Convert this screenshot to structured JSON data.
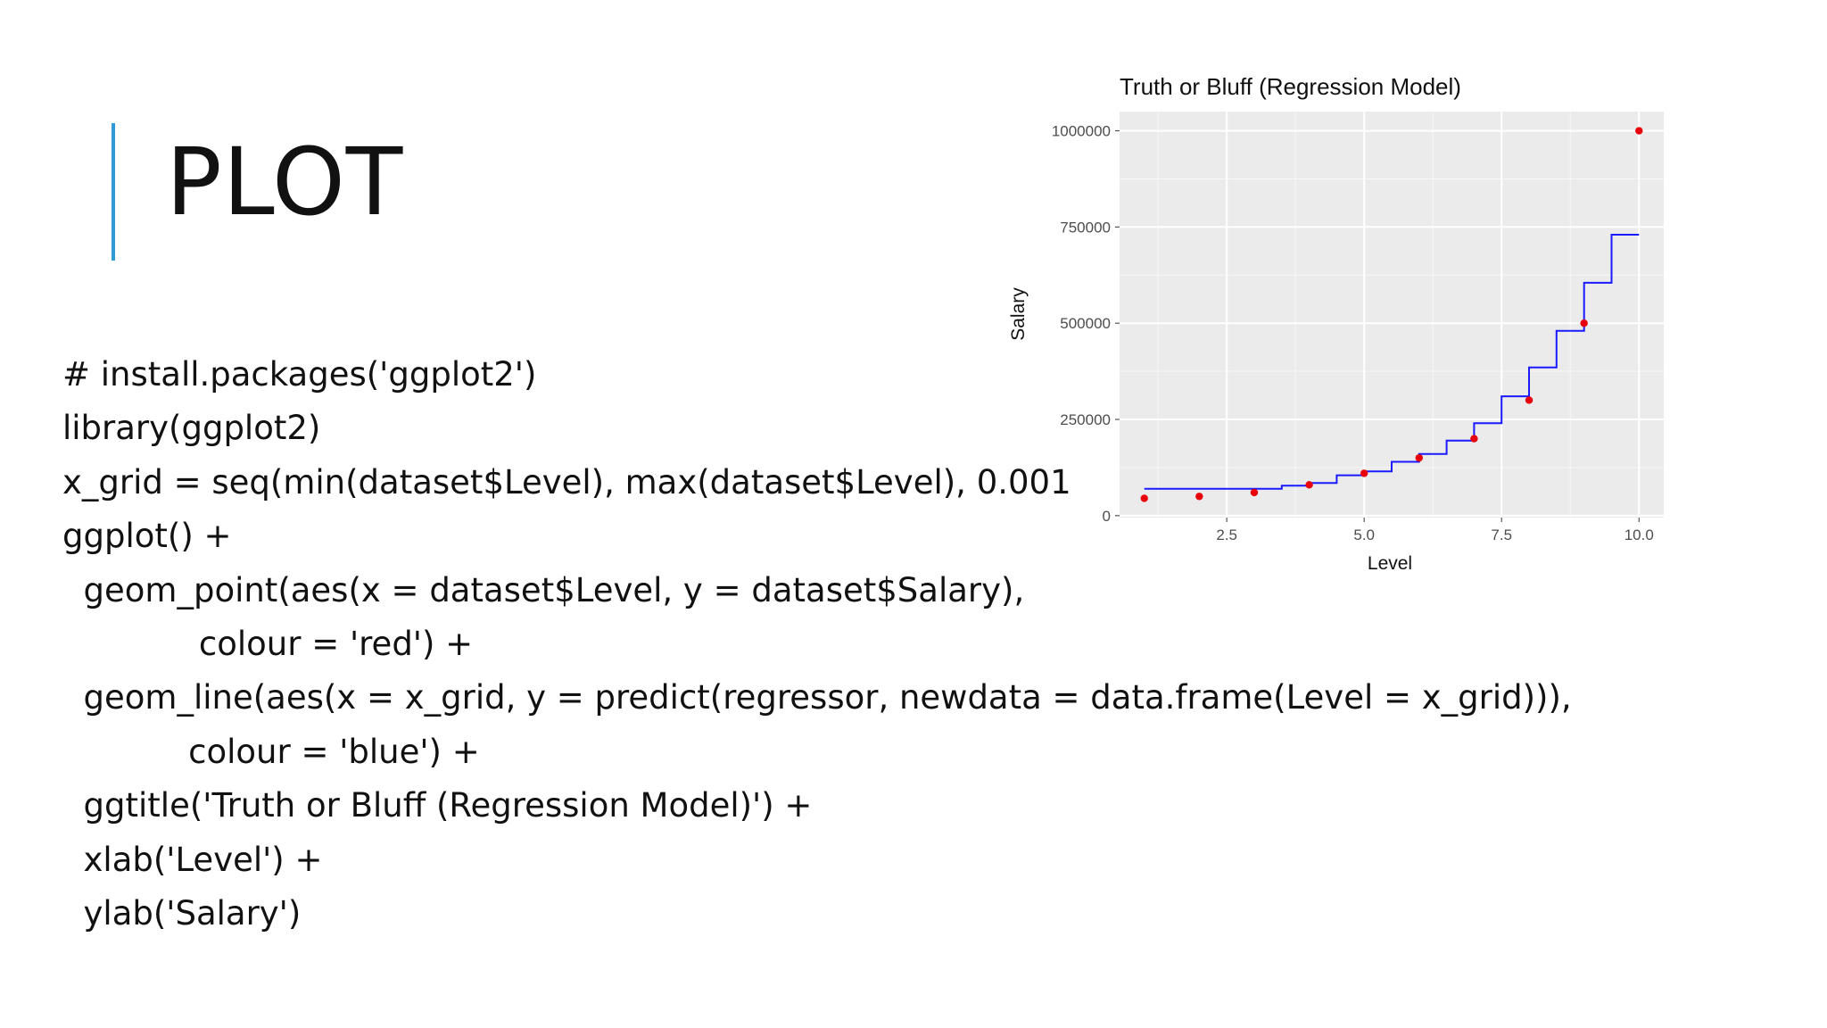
{
  "slide": {
    "title": "PLOT",
    "accent_color": "#2e9bd6"
  },
  "code_lines": [
    "# install.packages('ggplot2')",
    "library(ggplot2)",
    "x_grid = seq(min(dataset$Level), max(dataset$Level), 0.001",
    "ggplot() +",
    "  geom_point(aes(x = dataset$Level, y = dataset$Salary),",
    "             colour = 'red') +",
    "  geom_line(aes(x = x_grid, y = predict(regressor, newdata = data.frame(Level = x_grid))),",
    "            colour = 'blue') +",
    "  ggtitle('Truth or Bluff (Regression Model)') +",
    "  xlab('Level') +",
    "  ylab('Salary')"
  ],
  "chart_data": {
    "type": "scatter",
    "title": "Truth or Bluff (Regression Model)",
    "xlabel": "Level",
    "ylabel": "Salary",
    "xlim": [
      0.55,
      10.45
    ],
    "ylim": [
      -5000,
      1050000
    ],
    "x_ticks": [
      2.5,
      5.0,
      7.5,
      10.0
    ],
    "x_tick_labels": [
      "2.5",
      "5.0",
      "7.5",
      "10.0"
    ],
    "y_ticks": [
      0,
      250000,
      500000,
      750000,
      1000000
    ],
    "y_tick_labels": [
      "0",
      "250000",
      "500000",
      "750000",
      "1000000"
    ],
    "grid": true,
    "panel_color": "#ebebeb",
    "series": [
      {
        "kind": "points",
        "color": "#e8000b",
        "x": [
          1,
          2,
          3,
          4,
          5,
          6,
          7,
          8,
          9,
          10
        ],
        "y": [
          45000,
          50000,
          60000,
          80000,
          110000,
          150000,
          200000,
          300000,
          500000,
          1000000
        ]
      },
      {
        "kind": "step-line",
        "color": "#1a1aff",
        "steps": [
          {
            "x0": 1.0,
            "x1": 3.5,
            "y": 70000
          },
          {
            "x0": 3.5,
            "x1": 4.0,
            "y": 78000
          },
          {
            "x0": 4.0,
            "x1": 4.5,
            "y": 85000
          },
          {
            "x0": 4.5,
            "x1": 5.0,
            "y": 105000
          },
          {
            "x0": 5.0,
            "x1": 5.5,
            "y": 115000
          },
          {
            "x0": 5.5,
            "x1": 6.0,
            "y": 140000
          },
          {
            "x0": 6.0,
            "x1": 6.5,
            "y": 160000
          },
          {
            "x0": 6.5,
            "x1": 7.0,
            "y": 195000
          },
          {
            "x0": 7.0,
            "x1": 7.5,
            "y": 240000
          },
          {
            "x0": 7.5,
            "x1": 8.0,
            "y": 310000
          },
          {
            "x0": 8.0,
            "x1": 8.5,
            "y": 385000
          },
          {
            "x0": 8.5,
            "x1": 9.0,
            "y": 480000
          },
          {
            "x0": 9.0,
            "x1": 9.5,
            "y": 605000
          },
          {
            "x0": 9.5,
            "x1": 10.0,
            "y": 730000
          }
        ]
      }
    ]
  }
}
